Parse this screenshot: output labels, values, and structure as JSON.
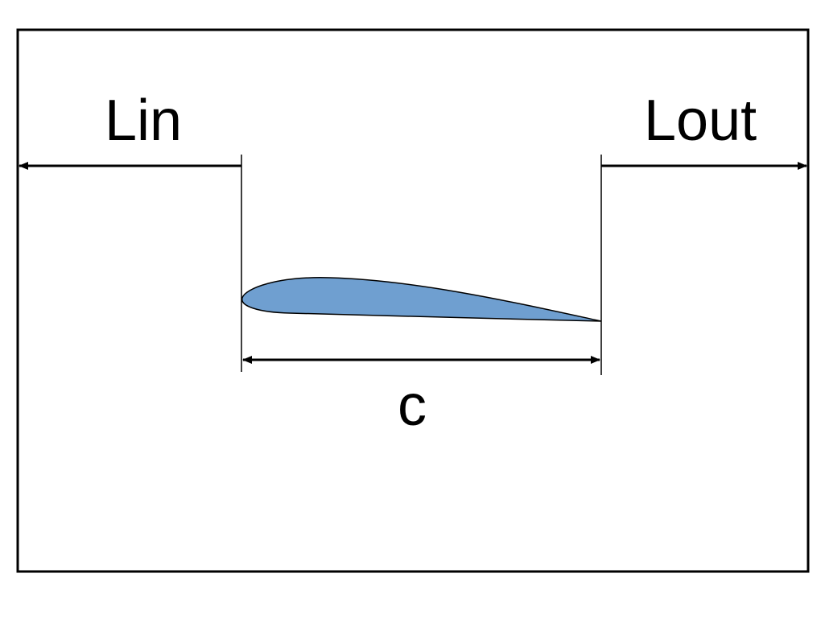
{
  "diagram": {
    "labels": {
      "inlet_length": "Lin",
      "outlet_length": "Lout",
      "chord": "c"
    },
    "colors": {
      "airfoil_fill": "#6f9fd0",
      "stroke": "#000000",
      "background": "#ffffff"
    }
  }
}
